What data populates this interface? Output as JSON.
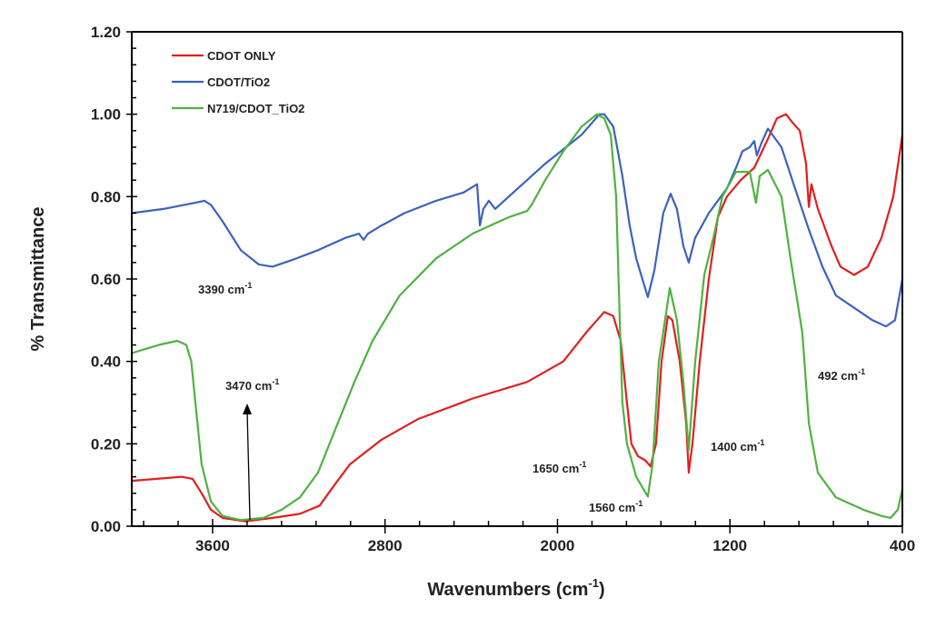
{
  "chart_data": {
    "type": "line",
    "title": "",
    "xlabel": "Wavenumbers (cm",
    "xlabel_sup": "-1",
    "xlabel_end": ")",
    "ylabel": "% Transmittance",
    "xlim": [
      3975,
      400
    ],
    "ylim": [
      0,
      1.2
    ],
    "x_reversed": true,
    "grid": false,
    "legend_position": "top-left",
    "x_ticks": [
      3600,
      2800,
      2000,
      1200,
      400
    ],
    "x_tick_labels": [
      "3600",
      "2800",
      "2000",
      "1200",
      "400"
    ],
    "y_ticks": [
      0,
      0.2,
      0.4,
      0.6,
      0.8,
      1.0,
      1.2
    ],
    "y_tick_labels": [
      "0.00",
      "0.20",
      "0.40",
      "0.60",
      "0.80",
      "1.00",
      "1.20"
    ],
    "series": [
      {
        "name": "CDOT ONLY",
        "color": "#e0201e",
        "x": [
          3975,
          3743,
          3693,
          3651,
          3608,
          3554,
          3448,
          3322,
          3195,
          3103,
          3035,
          2963,
          2816,
          2647,
          2394,
          2141,
          1973,
          1867,
          1783,
          1741,
          1707,
          1678,
          1657,
          1627,
          1593,
          1568,
          1543,
          1517,
          1488,
          1467,
          1433,
          1403,
          1391,
          1374,
          1340,
          1298,
          1256,
          1214,
          1150,
          1087,
          1024,
          982,
          940,
          910,
          876,
          847,
          834,
          822,
          792,
          729,
          687,
          624,
          560,
          497,
          442,
          400
        ],
        "y": [
          0.11,
          0.12,
          0.115,
          0.08,
          0.04,
          0.02,
          0.012,
          0.02,
          0.03,
          0.05,
          0.1,
          0.15,
          0.21,
          0.26,
          0.31,
          0.35,
          0.4,
          0.47,
          0.52,
          0.51,
          0.45,
          0.3,
          0.2,
          0.17,
          0.16,
          0.145,
          0.2,
          0.4,
          0.51,
          0.5,
          0.4,
          0.25,
          0.13,
          0.2,
          0.4,
          0.6,
          0.75,
          0.8,
          0.84,
          0.87,
          0.94,
          0.99,
          1.0,
          0.98,
          0.96,
          0.88,
          0.775,
          0.83,
          0.77,
          0.68,
          0.63,
          0.61,
          0.63,
          0.7,
          0.8,
          0.95
        ]
      },
      {
        "name": "CDOT/TiO2",
        "color": "#3a62c0",
        "x": [
          3975,
          3828,
          3680,
          3638,
          3608,
          3554,
          3469,
          3385,
          3322,
          3237,
          3111,
          2984,
          2921,
          2900,
          2879,
          2816,
          2710,
          2563,
          2436,
          2373,
          2360,
          2344,
          2318,
          2289,
          2226,
          2057,
          1888,
          1805,
          1783,
          1741,
          1699,
          1665,
          1635,
          1581,
          1551,
          1509,
          1475,
          1446,
          1416,
          1391,
          1361,
          1298,
          1214,
          1172,
          1142,
          1108,
          1087,
          1075,
          1054,
          1024,
          961,
          898,
          834,
          771,
          708,
          624,
          539,
          476,
          434,
          400
        ],
        "y": [
          0.76,
          0.77,
          0.785,
          0.79,
          0.78,
          0.74,
          0.67,
          0.635,
          0.63,
          0.645,
          0.67,
          0.7,
          0.71,
          0.695,
          0.71,
          0.73,
          0.76,
          0.79,
          0.81,
          0.83,
          0.73,
          0.77,
          0.79,
          0.77,
          0.8,
          0.88,
          0.95,
          1.0,
          1.0,
          0.97,
          0.85,
          0.73,
          0.65,
          0.556,
          0.62,
          0.76,
          0.807,
          0.77,
          0.68,
          0.64,
          0.7,
          0.76,
          0.82,
          0.87,
          0.91,
          0.92,
          0.935,
          0.9,
          0.93,
          0.965,
          0.92,
          0.82,
          0.72,
          0.63,
          0.56,
          0.53,
          0.5,
          0.485,
          0.5,
          0.6
        ]
      },
      {
        "name": "N719/CDOT_TiO2",
        "color": "#4fb241",
        "x": [
          3975,
          3849,
          3764,
          3722,
          3699,
          3680,
          3651,
          3608,
          3554,
          3469,
          3364,
          3280,
          3195,
          3111,
          3027,
          2942,
          2858,
          2732,
          2563,
          2394,
          2331,
          2226,
          2141,
          2120,
          2057,
          1973,
          1888,
          1817,
          1783,
          1753,
          1728,
          1711,
          1699,
          1678,
          1635,
          1581,
          1559,
          1530,
          1479,
          1446,
          1416,
          1391,
          1361,
          1319,
          1277,
          1235,
          1172,
          1150,
          1108,
          1079,
          1062,
          1024,
          961,
          919,
          864,
          834,
          792,
          708,
          581,
          497,
          455,
          421,
          400
        ],
        "y": [
          0.42,
          0.44,
          0.45,
          0.44,
          0.4,
          0.3,
          0.15,
          0.06,
          0.025,
          0.015,
          0.02,
          0.04,
          0.07,
          0.13,
          0.24,
          0.35,
          0.45,
          0.56,
          0.65,
          0.71,
          0.725,
          0.75,
          0.765,
          0.78,
          0.84,
          0.91,
          0.97,
          1.0,
          0.99,
          0.95,
          0.8,
          0.5,
          0.3,
          0.2,
          0.12,
          0.072,
          0.15,
          0.4,
          0.578,
          0.5,
          0.35,
          0.185,
          0.4,
          0.61,
          0.7,
          0.8,
          0.86,
          0.86,
          0.86,
          0.785,
          0.85,
          0.865,
          0.8,
          0.65,
          0.47,
          0.25,
          0.13,
          0.07,
          0.04,
          0.025,
          0.02,
          0.04,
          0.09
        ]
      }
    ],
    "annotations": [
      {
        "text": "3390 cm",
        "sup": "-1"
      },
      {
        "text": "3470 cm",
        "sup": "-1"
      },
      {
        "text": "1650 cm",
        "sup": "-1"
      },
      {
        "text": "1560 cm",
        "sup": "-1"
      },
      {
        "text": "1400  cm",
        "sup": "-1"
      },
      {
        "text": "492 cm",
        "sup": "-1"
      }
    ]
  }
}
